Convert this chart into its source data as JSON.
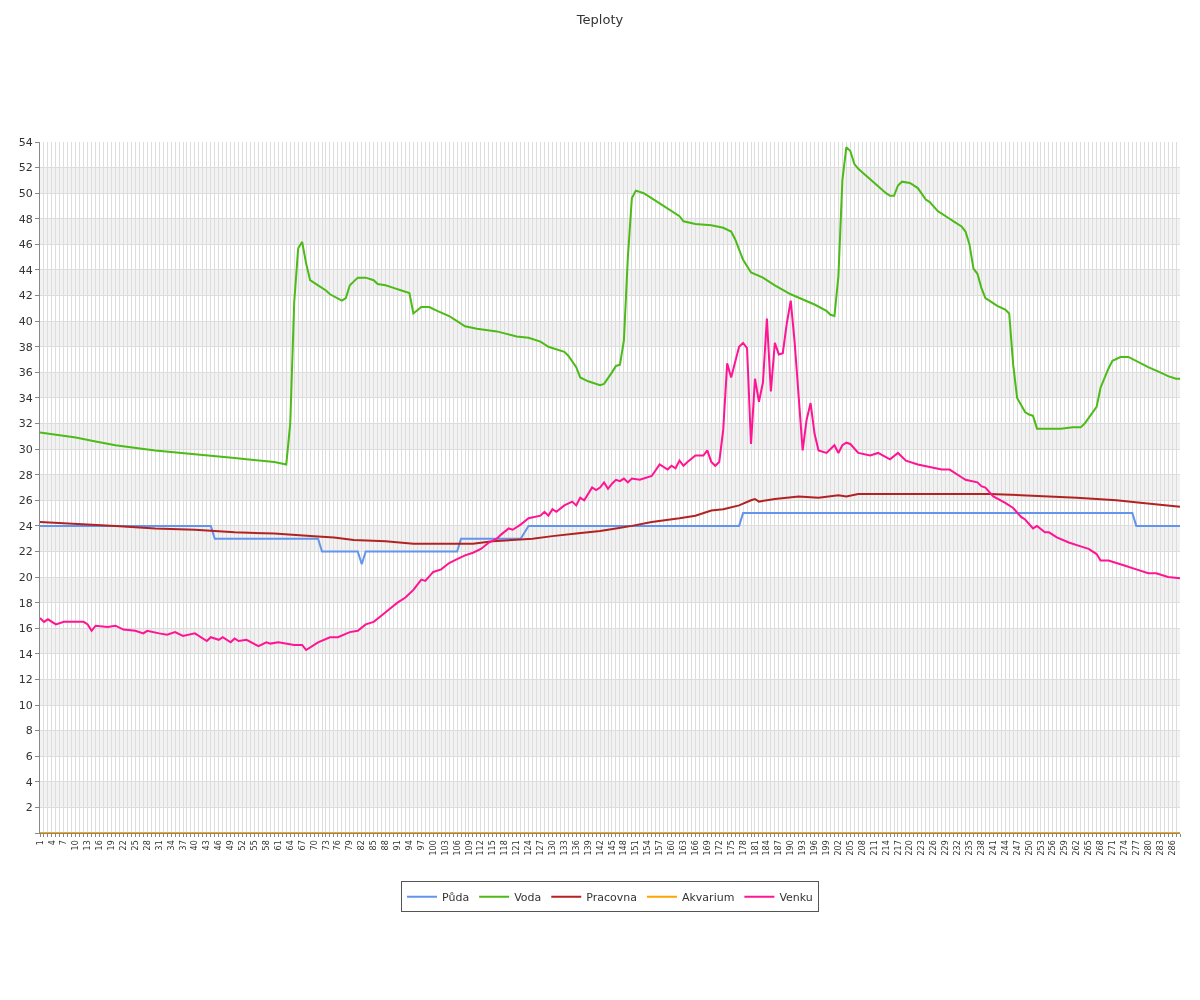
{
  "chart_data": {
    "type": "line",
    "title": "Teploty",
    "xlim": [
      1,
      288
    ],
    "xticks": [
      1,
      {
        "value": 2,
        "label": null
      },
      {
        "value": 3,
        "label": null
      },
      4,
      {
        "value": 5,
        "label": null
      },
      {
        "value": 6,
        "label": null
      },
      7,
      {
        "value": 8,
        "label": null
      },
      {
        "value": 9,
        "label": null
      },
      10,
      {
        "value": 11,
        "label": null
      },
      {
        "value": 12,
        "label": null
      },
      13,
      {
        "value": 14,
        "label": null
      },
      {
        "value": 15,
        "label": null
      },
      16,
      {
        "value": 17,
        "label": null
      },
      {
        "value": 18,
        "label": null
      },
      19,
      {
        "value": 20,
        "label": null
      },
      {
        "value": 21,
        "label": null
      },
      22,
      {
        "value": 23,
        "label": null
      },
      {
        "value": 24,
        "label": null
      },
      25,
      {
        "value": 26,
        "label": null
      },
      {
        "value": 27,
        "label": null
      },
      28,
      {
        "value": 29,
        "label": null
      },
      {
        "value": 30,
        "label": null
      },
      31,
      {
        "value": 32,
        "label": null
      },
      {
        "value": 33,
        "label": null
      },
      34,
      {
        "value": 35,
        "label": null
      },
      {
        "value": 36,
        "label": null
      },
      37,
      {
        "value": 38,
        "label": null
      },
      {
        "value": 39,
        "label": null
      },
      40,
      {
        "value": 41,
        "label": null
      },
      {
        "value": 42,
        "label": null
      },
      43,
      {
        "value": 44,
        "label": null
      },
      {
        "value": 45,
        "label": null
      },
      46,
      {
        "value": 47,
        "label": null
      },
      {
        "value": 48,
        "label": null
      },
      49,
      {
        "value": 50,
        "label": null
      },
      {
        "value": 51,
        "label": null
      },
      52,
      {
        "value": 53,
        "label": null
      },
      {
        "value": 54,
        "label": null
      },
      55,
      {
        "value": 56,
        "label": null
      },
      {
        "value": 57,
        "label": null
      },
      58,
      {
        "value": 59,
        "label": null
      },
      {
        "value": 60,
        "label": null
      },
      61,
      {
        "value": 62,
        "label": null
      },
      {
        "value": 63,
        "label": null
      },
      64,
      {
        "value": 65,
        "label": null
      },
      {
        "value": 66,
        "label": null
      },
      67,
      {
        "value": 68,
        "label": null
      },
      {
        "value": 69,
        "label": null
      },
      70,
      {
        "value": 71,
        "label": null
      },
      {
        "value": 72,
        "label": null
      },
      73,
      {
        "value": 74,
        "label": null
      },
      {
        "value": 75,
        "label": null
      },
      76,
      {
        "value": 77,
        "label": null
      },
      {
        "value": 78,
        "label": null
      },
      79,
      {
        "value": 80,
        "label": null
      },
      {
        "value": 81,
        "label": null
      },
      82,
      {
        "value": 83,
        "label": null
      },
      {
        "value": 84,
        "label": null
      },
      85,
      {
        "value": 86,
        "label": null
      },
      {
        "value": 87,
        "label": null
      },
      88,
      {
        "value": 89,
        "label": null
      },
      {
        "value": 90,
        "label": null
      },
      91,
      {
        "value": 92,
        "label": null
      },
      {
        "value": 93,
        "label": null
      },
      94,
      {
        "value": 95,
        "label": null
      },
      {
        "value": 96,
        "label": null
      },
      97,
      {
        "value": 98,
        "label": null
      },
      {
        "value": 99,
        "label": null
      },
      100,
      {
        "value": 101,
        "label": null
      },
      {
        "value": 102,
        "label": null
      },
      103,
      {
        "value": 104,
        "label": null
      },
      {
        "value": 105,
        "label": null
      },
      106,
      {
        "value": 107,
        "label": null
      },
      {
        "value": 108,
        "label": null
      },
      109,
      {
        "value": 110,
        "label": null
      },
      {
        "value": 111,
        "label": null
      },
      112,
      {
        "value": 113,
        "label": null
      },
      {
        "value": 114,
        "label": null
      },
      115,
      {
        "value": 116,
        "label": null
      },
      {
        "value": 117,
        "label": null
      },
      118,
      {
        "value": 119,
        "label": null
      },
      {
        "value": 120,
        "label": null
      },
      121,
      {
        "value": 122,
        "label": null
      },
      {
        "value": 123,
        "label": null
      },
      124,
      {
        "value": 125,
        "label": null
      },
      {
        "value": 126,
        "label": null
      },
      127,
      {
        "value": 128,
        "label": null
      },
      {
        "value": 129,
        "label": null
      },
      130,
      {
        "value": 131,
        "label": null
      },
      {
        "value": 132,
        "label": null
      },
      133,
      {
        "value": 134,
        "label": null
      },
      {
        "value": 135,
        "label": null
      },
      136,
      {
        "value": 137,
        "label": null
      },
      {
        "value": 138,
        "label": null
      },
      139,
      {
        "value": 140,
        "label": null
      },
      {
        "value": 141,
        "label": null
      },
      142,
      {
        "value": 143,
        "label": null
      },
      {
        "value": 144,
        "label": null
      },
      145,
      {
        "value": 146,
        "label": null
      },
      {
        "value": 147,
        "label": null
      },
      148,
      {
        "value": 149,
        "label": null
      },
      {
        "value": 150,
        "label": null
      },
      151,
      {
        "value": 152,
        "label": null
      },
      {
        "value": 153,
        "label": null
      },
      154,
      {
        "value": 155,
        "label": null
      },
      {
        "value": 156,
        "label": null
      },
      157,
      {
        "value": 158,
        "label": null
      },
      {
        "value": 159,
        "label": null
      },
      160,
      {
        "value": 161,
        "label": null
      },
      {
        "value": 162,
        "label": null
      },
      163,
      {
        "value": 164,
        "label": null
      },
      {
        "value": 165,
        "label": null
      },
      166,
      {
        "value": 167,
        "label": null
      },
      {
        "value": 168,
        "label": null
      },
      169,
      {
        "value": 170,
        "label": null
      },
      {
        "value": 171,
        "label": null
      },
      172,
      {
        "value": 173,
        "label": null
      },
      {
        "value": 174,
        "label": null
      },
      175,
      {
        "value": 176,
        "label": null
      },
      {
        "value": 177,
        "label": null
      },
      178,
      {
        "value": 179,
        "label": null
      },
      {
        "value": 180,
        "label": null
      },
      181,
      {
        "value": 182,
        "label": null
      },
      {
        "value": 183,
        "label": null
      },
      184,
      {
        "value": 185,
        "label": null
      },
      {
        "value": 186,
        "label": null
      },
      187,
      {
        "value": 188,
        "label": null
      },
      {
        "value": 189,
        "label": null
      },
      190,
      {
        "value": 191,
        "label": null
      },
      {
        "value": 192,
        "label": null
      },
      193,
      {
        "value": 194,
        "label": null
      },
      {
        "value": 195,
        "label": null
      },
      196,
      {
        "value": 197,
        "label": null
      },
      {
        "value": 198,
        "label": null
      },
      199,
      {
        "value": 200,
        "label": null
      },
      {
        "value": 201,
        "label": null
      },
      202,
      {
        "value": 203,
        "label": null
      },
      {
        "value": 204,
        "label": null
      },
      205,
      {
        "value": 206,
        "label": null
      },
      {
        "value": 207,
        "label": null
      },
      208,
      {
        "value": 209,
        "label": null
      },
      {
        "value": 210,
        "label": null
      },
      211,
      {
        "value": 212,
        "label": null
      },
      {
        "value": 213,
        "label": null
      },
      214,
      {
        "value": 215,
        "label": null
      },
      {
        "value": 216,
        "label": null
      },
      217,
      {
        "value": 218,
        "label": null
      },
      {
        "value": 219,
        "label": null
      },
      220,
      {
        "value": 221,
        "label": null
      },
      {
        "value": 222,
        "label": null
      },
      223,
      {
        "value": 224,
        "label": null
      },
      {
        "value": 225,
        "label": null
      },
      226,
      {
        "value": 227,
        "label": null
      },
      {
        "value": 228,
        "label": null
      },
      229,
      {
        "value": 230,
        "label": null
      },
      {
        "value": 231,
        "label": null
      },
      232,
      {
        "value": 233,
        "label": null
      },
      {
        "value": 234,
        "label": null
      },
      235,
      {
        "value": 236,
        "label": null
      },
      {
        "value": 237,
        "label": null
      },
      238,
      {
        "value": 239,
        "label": null
      },
      {
        "value": 240,
        "label": null
      },
      241,
      {
        "value": 242,
        "label": null
      },
      {
        "value": 243,
        "label": null
      },
      244,
      {
        "value": 245,
        "label": null
      },
      {
        "value": 246,
        "label": null
      },
      247,
      {
        "value": 248,
        "label": null
      },
      {
        "value": 249,
        "label": null
      },
      250,
      {
        "value": 251,
        "label": null
      },
      {
        "value": 252,
        "label": null
      },
      253,
      {
        "value": 254,
        "label": null
      },
      {
        "value": 255,
        "label": null
      },
      256,
      {
        "value": 257,
        "label": null
      },
      {
        "value": 258,
        "label": null
      },
      259,
      {
        "value": 260,
        "label": null
      },
      {
        "value": 261,
        "label": null
      },
      262,
      {
        "value": 263,
        "label": null
      },
      {
        "value": 264,
        "label": null
      },
      265,
      {
        "value": 266,
        "label": null
      },
      {
        "value": 267,
        "label": null
      },
      268,
      {
        "value": 269,
        "label": null
      },
      {
        "value": 270,
        "label": null
      },
      271,
      {
        "value": 272,
        "label": null
      },
      {
        "value": 273,
        "label": null
      },
      274,
      {
        "value": 275,
        "label": null
      },
      {
        "value": 276,
        "label": null
      },
      277,
      {
        "value": 278,
        "label": null
      },
      {
        "value": 279,
        "label": null
      },
      280,
      {
        "value": 281,
        "label": null
      },
      {
        "value": 282,
        "label": null
      },
      283,
      {
        "value": 284,
        "label": null
      },
      {
        "value": 285,
        "label": null
      },
      286,
      {
        "value": 287,
        "label": null
      },
      {
        "value": 288,
        "label": null
      }
    ],
    "ylim": [
      0,
      54
    ],
    "yticks": [
      {
        "value": 0,
        "label": null
      },
      2,
      4,
      6,
      8,
      10,
      12,
      14,
      16,
      18,
      20,
      22,
      24,
      26,
      28,
      30,
      32,
      34,
      36,
      38,
      40,
      42,
      44,
      46,
      48,
      50,
      52,
      54
    ],
    "grid": true,
    "legend": "bottom",
    "marker": "none",
    "line_style": "solid",
    "bands": [
      {
        "axis": "y",
        "from": 2,
        "to": 4,
        "color": "#f2f2f2"
      },
      {
        "axis": "y",
        "from": 6,
        "to": 8,
        "color": "#f2f2f2"
      },
      {
        "axis": "y",
        "from": 10,
        "to": 12,
        "color": "#f2f2f2"
      },
      {
        "axis": "y",
        "from": 14,
        "to": 16,
        "color": "#f2f2f2"
      },
      {
        "axis": "y",
        "from": 18,
        "to": 20,
        "color": "#f2f2f2"
      },
      {
        "axis": "y",
        "from": 22,
        "to": 24,
        "color": "#f2f2f2"
      },
      {
        "axis": "y",
        "from": 26,
        "to": 28,
        "color": "#f2f2f2"
      },
      {
        "axis": "y",
        "from": 30,
        "to": 32,
        "color": "#f2f2f2"
      },
      {
        "axis": "y",
        "from": 34,
        "to": 36,
        "color": "#f2f2f2"
      },
      {
        "axis": "y",
        "from": 38,
        "to": 40,
        "color": "#f2f2f2"
      },
      {
        "axis": "y",
        "from": 42,
        "to": 44,
        "color": "#f2f2f2"
      },
      {
        "axis": "y",
        "from": 46,
        "to": 48,
        "color": "#f2f2f2"
      },
      {
        "axis": "y",
        "from": 50,
        "to": 52,
        "color": "#f2f2f2"
      }
    ],
    "series": [
      {
        "name": "Půda",
        "color": "#6495ed",
        "x": [
          1,
          44,
          45,
          71,
          72,
          81,
          82,
          83,
          106,
          107,
          122,
          124,
          177,
          178,
          276,
          277,
          288
        ],
        "values": [
          24,
          24,
          23,
          23,
          22,
          22,
          21,
          22,
          22,
          23,
          23,
          24,
          24,
          25,
          25,
          24,
          24
        ]
      },
      {
        "name": "Voda",
        "color": "#4cbb17",
        "x": [
          1,
          10,
          15,
          20,
          30,
          40,
          50,
          60,
          63,
          64,
          65,
          66,
          67,
          68,
          69,
          71,
          73,
          74,
          77,
          78,
          79,
          81,
          83,
          85,
          86,
          88,
          90,
          92,
          94,
          95,
          97,
          99,
          101,
          104,
          106,
          108,
          111,
          116,
          121,
          124,
          127,
          129,
          133,
          134,
          136,
          137,
          139,
          142,
          143,
          145,
          146,
          147,
          148,
          149,
          150,
          151,
          153,
          157,
          162,
          163,
          166,
          170,
          173,
          175,
          176,
          178,
          180,
          183,
          186,
          190,
          196,
          199,
          200,
          201,
          202,
          203,
          204,
          205,
          206,
          207,
          214,
          215,
          216,
          217,
          218,
          220,
          222,
          224,
          225,
          227,
          228,
          230,
          231,
          233,
          234,
          235,
          236,
          237,
          238,
          239,
          240,
          242,
          244,
          245,
          246,
          247,
          249,
          250,
          251,
          252,
          258,
          261,
          263,
          264,
          267,
          268,
          270,
          271,
          273,
          275,
          280,
          283,
          285,
          287,
          288
        ],
        "values": [
          31.3,
          30.9,
          30.6,
          30.3,
          29.9,
          29.6,
          29.3,
          29.0,
          28.8,
          32.0,
          41.5,
          45.7,
          46.2,
          44.5,
          43.2,
          42.8,
          42.4,
          42.1,
          41.6,
          41.8,
          42.8,
          43.4,
          43.4,
          43.2,
          42.9,
          42.8,
          42.6,
          42.4,
          42.2,
          40.6,
          41.1,
          41.1,
          40.8,
          40.4,
          40.0,
          39.6,
          39.4,
          39.2,
          38.8,
          38.7,
          38.4,
          38.0,
          37.6,
          37.3,
          36.4,
          35.6,
          35.3,
          35.0,
          35.1,
          36.0,
          36.5,
          36.6,
          38.5,
          45.0,
          49.6,
          50.2,
          50.0,
          49.2,
          48.2,
          47.8,
          47.6,
          47.5,
          47.3,
          47.0,
          46.4,
          44.8,
          43.8,
          43.4,
          42.8,
          42.1,
          41.3,
          40.8,
          40.5,
          40.4,
          43.5,
          51.0,
          53.6,
          53.3,
          52.3,
          51.9,
          50.0,
          49.8,
          49.8,
          50.6,
          50.9,
          50.8,
          50.4,
          49.5,
          49.3,
          48.6,
          48.4,
          48.0,
          47.8,
          47.4,
          47.0,
          46.0,
          44.1,
          43.7,
          42.6,
          41.8,
          41.6,
          41.2,
          40.9,
          40.6,
          36.6,
          34.0,
          32.9,
          32.7,
          32.6,
          31.6,
          31.6,
          31.7,
          31.7,
          32.0,
          33.3,
          34.8,
          36.3,
          36.9,
          37.2,
          37.2,
          36.4,
          36.0,
          35.7,
          35.5,
          35.5
        ]
      },
      {
        "name": "Pracovna",
        "color": "#b22222",
        "x": [
          1,
          20,
          30,
          40,
          50,
          60,
          70,
          75,
          80,
          88,
          95,
          110,
          115,
          125,
          130,
          136,
          142,
          146,
          150,
          155,
          162,
          166,
          170,
          173,
          177,
          180,
          181,
          182,
          186,
          192,
          197,
          202,
          204,
          207,
          230,
          240,
          248,
          262,
          272,
          278,
          288
        ],
        "values": [
          24.3,
          24.0,
          23.8,
          23.7,
          23.5,
          23.4,
          23.2,
          23.1,
          22.9,
          22.8,
          22.6,
          22.6,
          22.8,
          23.0,
          23.2,
          23.4,
          23.6,
          23.8,
          24.0,
          24.3,
          24.6,
          24.8,
          25.2,
          25.3,
          25.6,
          26.0,
          26.1,
          25.9,
          26.1,
          26.3,
          26.2,
          26.4,
          26.3,
          26.5,
          26.5,
          26.5,
          26.4,
          26.2,
          26.0,
          25.8,
          25.5
        ]
      },
      {
        "name": "Akvarium",
        "color": "#ffa500",
        "x": [
          1,
          288
        ],
        "values": [
          0,
          0
        ]
      },
      {
        "name": "Venku",
        "color": "#ff1493",
        "x": [
          1,
          2,
          3,
          5,
          7,
          12,
          13,
          14,
          15,
          18,
          20,
          22,
          25,
          27,
          28,
          31,
          33,
          35,
          37,
          40,
          43,
          44,
          46,
          47,
          49,
          50,
          51,
          53,
          56,
          58,
          59,
          61,
          65,
          67,
          68,
          71,
          74,
          76,
          79,
          81,
          83,
          85,
          87,
          89,
          91,
          93,
          95,
          97,
          98,
          100,
          102,
          104,
          106,
          108,
          110,
          112,
          114,
          116,
          117,
          119,
          120,
          122,
          124,
          127,
          128,
          129,
          130,
          131,
          133,
          135,
          136,
          137,
          138,
          140,
          141,
          142,
          143,
          144,
          145,
          146,
          147,
          148,
          149,
          150,
          152,
          155,
          157,
          159,
          160,
          161,
          162,
          163,
          164,
          166,
          168,
          169,
          170,
          171,
          172,
          173,
          174,
          175,
          177,
          178,
          179,
          180,
          181,
          182,
          183,
          184,
          185,
          186,
          187,
          188,
          189,
          190,
          191,
          193,
          194,
          195,
          196,
          197,
          199,
          201,
          202,
          203,
          204,
          205,
          207,
          210,
          212,
          215,
          217,
          219,
          222,
          225,
          228,
          230,
          233,
          234,
          237,
          238,
          239,
          241,
          244,
          246,
          248,
          249,
          251,
          252,
          254,
          255,
          257,
          260,
          263,
          265,
          267,
          268,
          270,
          274,
          277,
          280,
          282,
          284,
          285,
          288
        ],
        "values": [
          16.8,
          16.5,
          16.7,
          16.3,
          16.5,
          16.5,
          16.3,
          15.8,
          16.2,
          16.1,
          16.2,
          15.9,
          15.8,
          15.6,
          15.8,
          15.6,
          15.5,
          15.7,
          15.4,
          15.6,
          15.0,
          15.3,
          15.1,
          15.3,
          14.9,
          15.2,
          15.0,
          15.1,
          14.6,
          14.9,
          14.8,
          14.9,
          14.7,
          14.7,
          14.3,
          14.9,
          15.3,
          15.3,
          15.7,
          15.8,
          16.3,
          16.5,
          17.0,
          17.5,
          18.0,
          18.4,
          19.0,
          19.8,
          19.7,
          20.4,
          20.6,
          21.1,
          21.4,
          21.7,
          21.9,
          22.2,
          22.7,
          23.0,
          23.3,
          23.8,
          23.7,
          24.1,
          24.6,
          24.8,
          25.1,
          24.8,
          25.3,
          25.1,
          25.6,
          25.9,
          25.6,
          26.2,
          26.0,
          27.0,
          26.8,
          27.0,
          27.4,
          26.9,
          27.3,
          27.6,
          27.5,
          27.7,
          27.4,
          27.7,
          27.6,
          27.9,
          28.8,
          28.4,
          28.7,
          28.5,
          29.1,
          28.7,
          29.0,
          29.5,
          29.5,
          29.9,
          29.0,
          28.7,
          29.0,
          31.5,
          36.7,
          35.6,
          38.0,
          38.3,
          37.9,
          30.4,
          35.5,
          33.7,
          35.2,
          40.2,
          34.5,
          38.3,
          37.4,
          37.5,
          39.8,
          41.6,
          38.3,
          29.9,
          32.3,
          33.6,
          31.2,
          29.9,
          29.7,
          30.3,
          29.7,
          30.3,
          30.5,
          30.4,
          29.7,
          29.5,
          29.7,
          29.2,
          29.7,
          29.1,
          28.8,
          28.6,
          28.4,
          28.4,
          27.8,
          27.6,
          27.4,
          27.1,
          27.0,
          26.3,
          25.8,
          25.4,
          24.7,
          24.5,
          23.8,
          24.0,
          23.5,
          23.5,
          23.1,
          22.7,
          22.4,
          22.2,
          21.8,
          21.3,
          21.3,
          20.9,
          20.6,
          20.3,
          20.3,
          20.1,
          20.0,
          19.9
        ]
      }
    ]
  }
}
